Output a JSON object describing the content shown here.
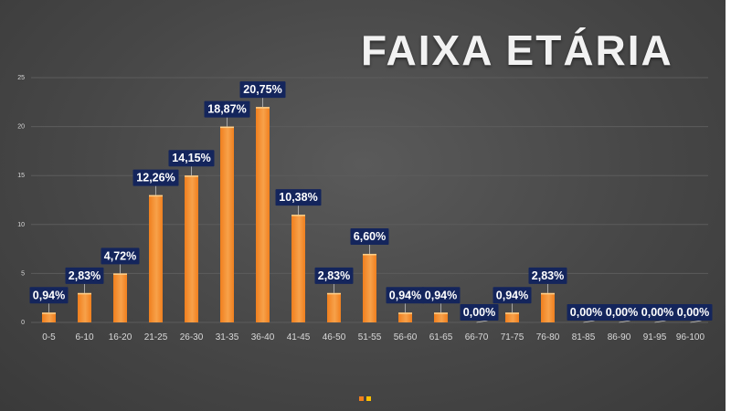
{
  "chart_data": {
    "type": "bar",
    "title": "FAIXA ETÁRIA",
    "categories": [
      "0-5",
      "6-10",
      "16-20",
      "21-25",
      "26-30",
      "31-35",
      "36-40",
      "41-45",
      "46-50",
      "51-55",
      "56-60",
      "61-65",
      "66-70",
      "71-75",
      "76-80",
      "81-85",
      "86-90",
      "91-95",
      "96-100"
    ],
    "values": [
      1,
      3,
      5,
      13,
      15,
      20,
      22,
      11,
      3,
      7,
      1,
      1,
      0,
      1,
      3,
      0,
      0,
      0,
      0
    ],
    "data_labels": [
      "0,94%",
      "2,83%",
      "4,72%",
      "12,26%",
      "14,15%",
      "18,87%",
      "20,75%",
      "10,38%",
      "2,83%",
      "6,60%",
      "0,94%",
      "0,94%",
      "0,00%",
      "0,94%",
      "2,83%",
      "0,00%",
      "0,00%",
      "0,00%",
      "0,00%"
    ],
    "y_ticks": [
      "0",
      "5",
      "10",
      "15",
      "20",
      "25"
    ],
    "ylim": [
      0,
      25
    ],
    "grid": true,
    "legend_position": "bottom",
    "colors": {
      "bar": "#f07f1e",
      "bar_light": "#f7a14a",
      "label_bg": "#14255c",
      "gridline": "#5c5c5c",
      "legend_a": "#f07f1e",
      "legend_b": "#ffc000"
    }
  }
}
